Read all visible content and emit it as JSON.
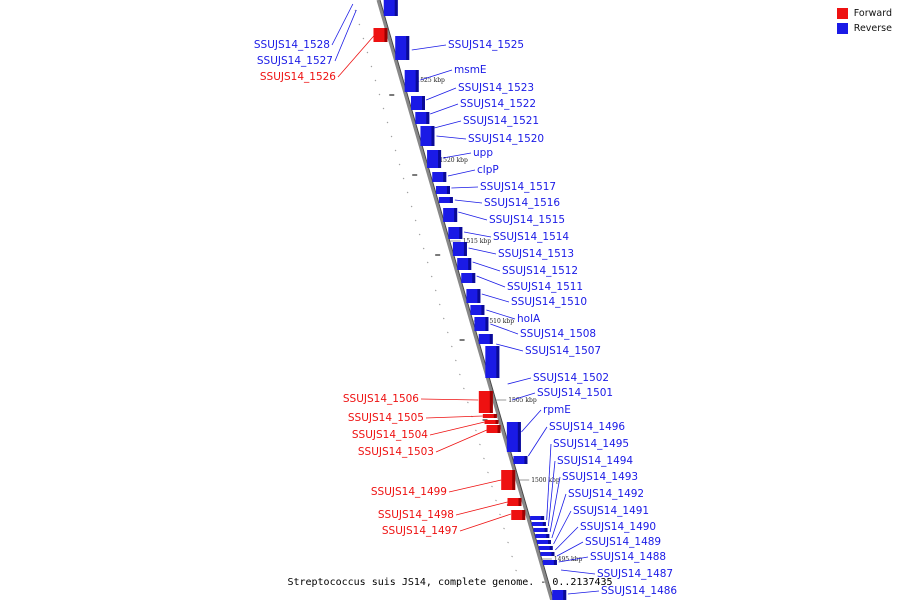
{
  "colors": {
    "forward": "#ee1111",
    "reverse": "#1a1ae6",
    "axis": "#888888"
  },
  "legend": {
    "forward": "Forward",
    "reverse": "Reverse"
  },
  "caption": "Streptococcus suis JS14, complete genome. - 0..2137435",
  "ticks": [
    "1525 kbp",
    "1520 kbp",
    "1515 kbp",
    "1510 kbp",
    "1505 kbp",
    "1500 kbp",
    "1495 kbp"
  ],
  "genes": {
    "forward": [
      "SSUJS14_1526",
      "SSUJS14_1506",
      "SSUJS14_1505",
      "SSUJS14_1504",
      "SSUJS14_1503",
      "SSUJS14_1499",
      "SSUJS14_1498",
      "SSUJS14_1497"
    ],
    "reverse_left": [
      "SSUJS14_1528",
      "SSUJS14_1527"
    ],
    "reverse": [
      "SSUJS14_1525",
      "msmE",
      "SSUJS14_1523",
      "SSUJS14_1522",
      "SSUJS14_1521",
      "SSUJS14_1520",
      "upp",
      "clpP",
      "SSUJS14_1517",
      "SSUJS14_1516",
      "SSUJS14_1515",
      "SSUJS14_1514",
      "SSUJS14_1513",
      "SSUJS14_1512",
      "SSUJS14_1511",
      "SSUJS14_1510",
      "holA",
      "SSUJS14_1508",
      "SSUJS14_1507",
      "SSUJS14_1502",
      "SSUJS14_1501",
      "rpmE",
      "SSUJS14_1496",
      "SSUJS14_1495",
      "SSUJS14_1494",
      "SSUJS14_1493",
      "SSUJS14_1492",
      "SSUJS14_1491",
      "SSUJS14_1490",
      "SSUJS14_1489",
      "SSUJS14_1488",
      "SSUJS14_1487",
      "SSUJS14_1486"
    ]
  }
}
